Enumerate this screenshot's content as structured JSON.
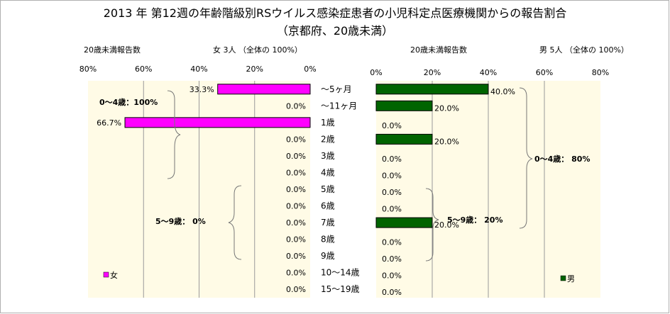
{
  "title": "2013 年 第12週の年齢階級別RSウイルス感染症患者の小児科定点医療機関からの報告割合",
  "subtitle": "（京都府、20歳未満）",
  "left_panel": {
    "count_label": "20歳未満報告数",
    "summary": "女  3人 （全体の  100%）"
  },
  "right_panel": {
    "count_label": "20歳未満報告数",
    "summary": "男  5人 （全体の  100%）"
  },
  "colors": {
    "female": "#ff00ff",
    "male": "#006400",
    "plot_bg": "#fffbe6",
    "grid": "#9a9a9a"
  },
  "chart_data": [
    {
      "type": "bar",
      "orientation": "horizontal",
      "direction": "right-to-left",
      "categories": [
        "～5ヶ月",
        "～11ヶ月",
        "1歳",
        "2歳",
        "3歳",
        "4歳",
        "5歳",
        "6歳",
        "7歳",
        "8歳",
        "9歳",
        "10～14歳",
        "15～19歳"
      ],
      "series": [
        {
          "name": "女",
          "values": [
            33.3,
            0,
            66.7,
            0,
            0,
            0,
            0,
            0,
            0,
            0,
            0,
            0,
            0
          ]
        }
      ],
      "value_labels": [
        "33.3%",
        "0.0%",
        "66.7%",
        "0.0%",
        "0.0%",
        "0.0%",
        "0.0%",
        "0.0%",
        "0.0%",
        "0.0%",
        "0.0%",
        "0.0%",
        "0.0%"
      ],
      "xticks": [
        "80%",
        "60%",
        "40%",
        "20%",
        "0%"
      ],
      "xlim": [
        0,
        80
      ],
      "grid": true,
      "legend": "bottom-left",
      "annotations": [
        "0～4歳：100%",
        "5～9歳：  0%"
      ]
    },
    {
      "type": "bar",
      "orientation": "horizontal",
      "direction": "left-to-right",
      "categories": [
        "～5ヶ月",
        "～11ヶ月",
        "1歳",
        "2歳",
        "3歳",
        "4歳",
        "5歳",
        "6歳",
        "7歳",
        "8歳",
        "9歳",
        "10～14歳",
        "15～19歳"
      ],
      "series": [
        {
          "name": "男",
          "values": [
            40.0,
            20.0,
            0,
            20.0,
            0,
            0,
            0,
            0,
            20.0,
            0,
            0,
            0,
            0
          ]
        }
      ],
      "value_labels": [
        "40.0%",
        "20.0%",
        "0.0%",
        "20.0%",
        "0.0%",
        "0.0%",
        "0.0%",
        "0.0%",
        "20.0%",
        "0.0%",
        "0.0%",
        "0.0%",
        "0.0%"
      ],
      "xticks": [
        "0%",
        "20%",
        "40%",
        "60%",
        "80%"
      ],
      "xlim": [
        0,
        80
      ],
      "grid": true,
      "legend": "bottom-right",
      "annotations": [
        "0～4歳：  80%",
        "5～9歳：  20%"
      ]
    }
  ]
}
